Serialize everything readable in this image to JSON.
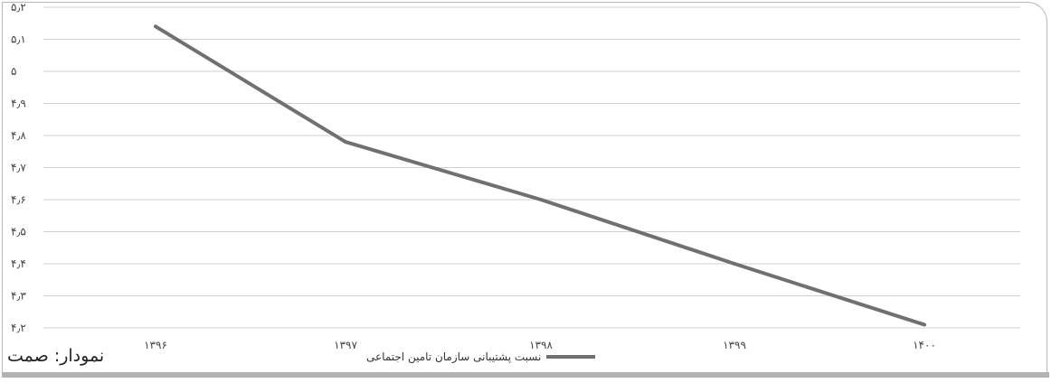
{
  "caption": "نمودار: صمت",
  "chart_data": {
    "type": "line",
    "title": "",
    "xlabel": "",
    "ylabel": "",
    "categories": [
      "۱۳۹۶",
      "۱۳۹۷",
      "۱۳۹۸",
      "۱۳۹۹",
      "۱۴۰۰"
    ],
    "series": [
      {
        "name": "نسبت پشتیبانی سازمان تامین اجتماعی",
        "values": [
          5.14,
          4.78,
          4.6,
          4.4,
          4.21
        ],
        "color": "#707070"
      }
    ],
    "y_ticks": [
      {
        "value": 4.2,
        "label": "۴٫۲"
      },
      {
        "value": 4.3,
        "label": "۴٫۳"
      },
      {
        "value": 4.4,
        "label": "۴٫۴"
      },
      {
        "value": 4.5,
        "label": "۴٫۵"
      },
      {
        "value": 4.6,
        "label": "۴٫۶"
      },
      {
        "value": 4.7,
        "label": "۴٫۷"
      },
      {
        "value": 4.8,
        "label": "۴٫۸"
      },
      {
        "value": 4.9,
        "label": "۴٫۹"
      },
      {
        "value": 5.0,
        "label": "۵"
      },
      {
        "value": 5.1,
        "label": "۵٫۱"
      },
      {
        "value": 5.2,
        "label": "۵٫۲"
      }
    ],
    "ylim": [
      4.2,
      5.2
    ],
    "grid": true,
    "legend_position": "bottom"
  }
}
